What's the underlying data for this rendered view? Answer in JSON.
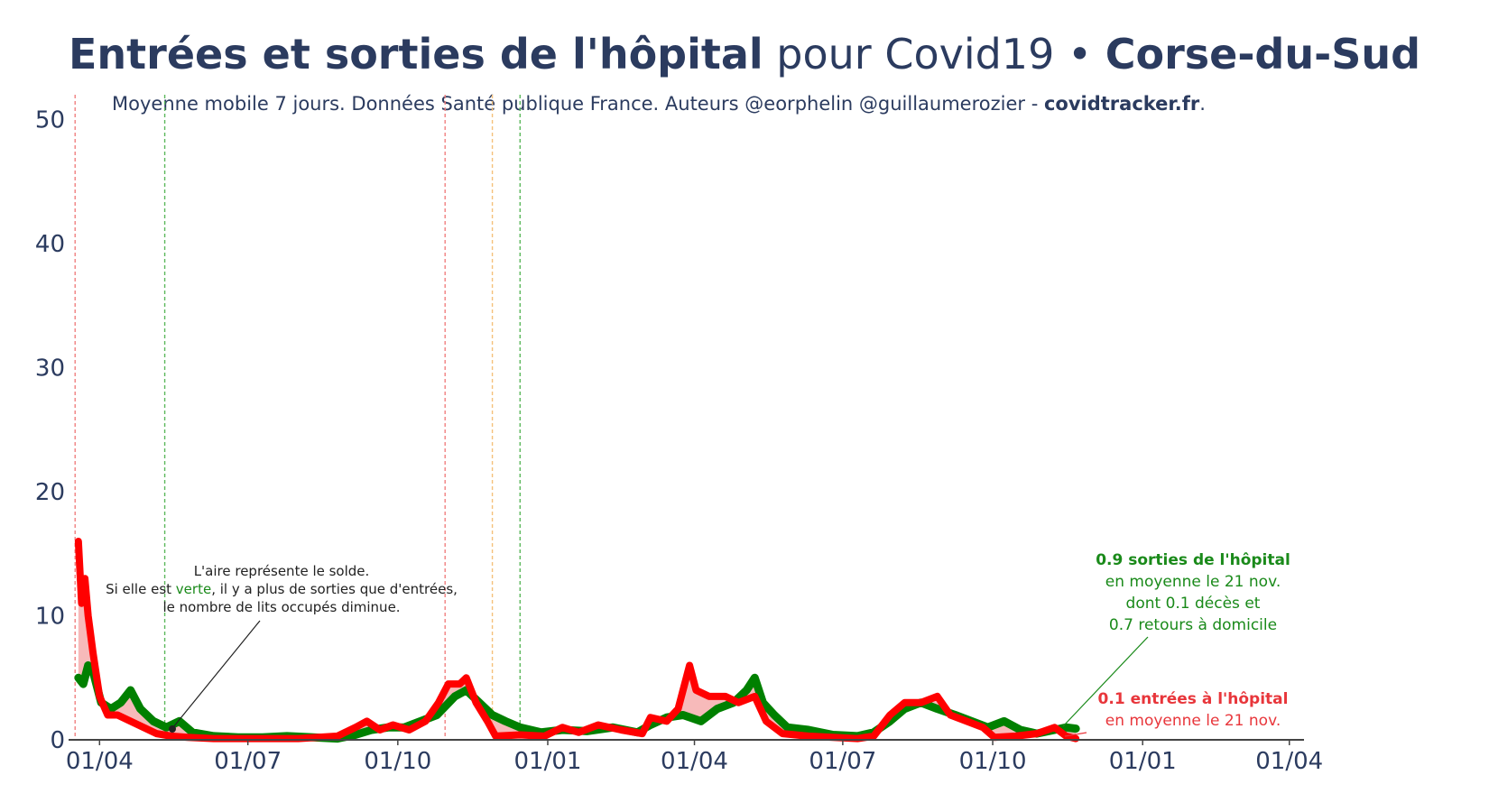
{
  "header": {
    "title_bold": "Entrées et sorties de l'hôpital",
    "title_mid": " pour Covid19 • ",
    "title_region": "Corse-du-Sud",
    "subtitle_pre": "Moyenne mobile 7 jours. Données Santé publique France. Auteurs @eorphelin @guillaumerozier - ",
    "subtitle_site": "covidtracker.fr",
    "subtitle_end": "."
  },
  "annotations": {
    "solde_line1": "L'aire représente le solde.",
    "solde_line2_pre": "Si elle est ",
    "solde_line2_green": "verte",
    "solde_line2_post": ", il y a plus de sorties que d'entrées,",
    "solde_line3": "le nombre de lits occupés diminue.",
    "sorties_line1": "0.9 sorties de l'hôpital",
    "sorties_line2": "en moyenne le 21 nov.",
    "sorties_line3": "dont 0.1 décès et",
    "sorties_line4": "0.7 retours à domicile",
    "entrees_line1": "0.1 entrées à l'hôpital",
    "entrees_line2": "en moyenne le 21 nov."
  },
  "colors": {
    "sorties": "#008000",
    "entrees": "#ff0000",
    "area_fill": "#f4a3a3",
    "text": "#2b3b5f",
    "ann_green": "#1a8a1a",
    "ann_red": "#e8363b"
  },
  "chart_data": {
    "type": "line",
    "title": "Entrées et sorties de l'hôpital pour Covid19 • Corse-du-Sud",
    "xlabel": "",
    "ylabel": "",
    "ylim": [
      0,
      52
    ],
    "xlim": [
      "2020-03-13",
      "2022-04-10"
    ],
    "yticks": [
      0,
      10,
      20,
      30,
      40,
      50
    ],
    "xticks": [
      {
        "date": "2020-04-01",
        "label": "01/04"
      },
      {
        "date": "2020-07-01",
        "label": "01/07"
      },
      {
        "date": "2020-10-01",
        "label": "01/10"
      },
      {
        "date": "2021-01-01",
        "label": "01/01"
      },
      {
        "date": "2021-04-01",
        "label": "01/04"
      },
      {
        "date": "2021-07-01",
        "label": "01/07"
      },
      {
        "date": "2021-10-01",
        "label": "01/10"
      },
      {
        "date": "2022-01-01",
        "label": "01/01"
      },
      {
        "date": "2022-04-01",
        "label": "01/04"
      }
    ],
    "vlines": [
      {
        "date": "2020-03-17",
        "color": "#f08080"
      },
      {
        "date": "2020-05-11",
        "color": "#5cb85c"
      },
      {
        "date": "2020-10-30",
        "color": "#f08080"
      },
      {
        "date": "2020-11-28",
        "color": "#f5c07a"
      },
      {
        "date": "2020-12-15",
        "color": "#5cb85c"
      }
    ],
    "grid": false,
    "series": [
      {
        "name": "sorties",
        "values": [
          [
            "2020-03-19",
            5.0
          ],
          [
            "2020-03-22",
            4.5
          ],
          [
            "2020-03-25",
            6.0
          ],
          [
            "2020-03-28",
            5.5
          ],
          [
            "2020-04-02",
            3.0
          ],
          [
            "2020-04-08",
            2.5
          ],
          [
            "2020-04-14",
            3.0
          ],
          [
            "2020-04-20",
            4.0
          ],
          [
            "2020-04-26",
            2.5
          ],
          [
            "2020-05-04",
            1.5
          ],
          [
            "2020-05-12",
            1.0
          ],
          [
            "2020-05-20",
            1.5
          ],
          [
            "2020-05-28",
            0.6
          ],
          [
            "2020-06-10",
            0.3
          ],
          [
            "2020-06-25",
            0.2
          ],
          [
            "2020-07-10",
            0.2
          ],
          [
            "2020-07-25",
            0.3
          ],
          [
            "2020-08-10",
            0.2
          ],
          [
            "2020-08-25",
            0.1
          ],
          [
            "2020-09-05",
            0.4
          ],
          [
            "2020-09-15",
            0.8
          ],
          [
            "2020-09-25",
            1.0
          ],
          [
            "2020-10-05",
            1.0
          ],
          [
            "2020-10-15",
            1.5
          ],
          [
            "2020-10-25",
            2.0
          ],
          [
            "2020-11-05",
            3.5
          ],
          [
            "2020-11-12",
            4.0
          ],
          [
            "2020-11-20",
            3.0
          ],
          [
            "2020-11-28",
            2.0
          ],
          [
            "2020-12-06",
            1.5
          ],
          [
            "2020-12-15",
            1.0
          ],
          [
            "2020-12-28",
            0.6
          ],
          [
            "2021-01-10",
            0.8
          ],
          [
            "2021-01-25",
            0.7
          ],
          [
            "2021-02-10",
            1.0
          ],
          [
            "2021-02-25",
            0.6
          ],
          [
            "2021-03-05",
            1.2
          ],
          [
            "2021-03-15",
            1.8
          ],
          [
            "2021-03-25",
            2.0
          ],
          [
            "2021-04-05",
            1.5
          ],
          [
            "2021-04-15",
            2.5
          ],
          [
            "2021-04-25",
            3.0
          ],
          [
            "2021-05-03",
            4.0
          ],
          [
            "2021-05-08",
            5.0
          ],
          [
            "2021-05-13",
            3.0
          ],
          [
            "2021-05-20",
            2.0
          ],
          [
            "2021-05-28",
            1.0
          ],
          [
            "2021-06-10",
            0.8
          ],
          [
            "2021-06-25",
            0.4
          ],
          [
            "2021-07-10",
            0.3
          ],
          [
            "2021-07-20",
            0.6
          ],
          [
            "2021-07-30",
            1.5
          ],
          [
            "2021-08-08",
            2.5
          ],
          [
            "2021-08-18",
            3.0
          ],
          [
            "2021-08-28",
            2.5
          ],
          [
            "2021-09-08",
            2.0
          ],
          [
            "2021-09-18",
            1.5
          ],
          [
            "2021-09-28",
            1.0
          ],
          [
            "2021-10-08",
            1.5
          ],
          [
            "2021-10-18",
            0.8
          ],
          [
            "2021-10-28",
            0.5
          ],
          [
            "2021-11-08",
            0.8
          ],
          [
            "2021-11-15",
            1.0
          ],
          [
            "2021-11-21",
            0.9
          ]
        ]
      },
      {
        "name": "entrées",
        "values": [
          [
            "2020-03-19",
            16.0
          ],
          [
            "2020-03-21",
            11.0
          ],
          [
            "2020-03-23",
            13.0
          ],
          [
            "2020-03-25",
            10.0
          ],
          [
            "2020-03-28",
            7.0
          ],
          [
            "2020-04-01",
            3.5
          ],
          [
            "2020-04-06",
            2.0
          ],
          [
            "2020-04-12",
            2.0
          ],
          [
            "2020-04-20",
            1.5
          ],
          [
            "2020-04-28",
            1.0
          ],
          [
            "2020-05-06",
            0.5
          ],
          [
            "2020-05-15",
            0.3
          ],
          [
            "2020-05-25",
            0.2
          ],
          [
            "2020-06-10",
            0.1
          ],
          [
            "2020-07-01",
            0.1
          ],
          [
            "2020-08-01",
            0.1
          ],
          [
            "2020-08-25",
            0.3
          ],
          [
            "2020-09-05",
            1.0
          ],
          [
            "2020-09-12",
            1.5
          ],
          [
            "2020-09-20",
            0.8
          ],
          [
            "2020-09-28",
            1.2
          ],
          [
            "2020-10-08",
            0.8
          ],
          [
            "2020-10-18",
            1.5
          ],
          [
            "2020-10-26",
            3.0
          ],
          [
            "2020-11-01",
            4.5
          ],
          [
            "2020-11-08",
            4.5
          ],
          [
            "2020-11-12",
            5.0
          ],
          [
            "2020-11-18",
            3.0
          ],
          [
            "2020-11-25",
            1.5
          ],
          [
            "2020-11-30",
            0.3
          ],
          [
            "2020-12-15",
            0.4
          ],
          [
            "2020-12-30",
            0.3
          ],
          [
            "2021-01-10",
            1.0
          ],
          [
            "2021-01-20",
            0.6
          ],
          [
            "2021-02-01",
            1.2
          ],
          [
            "2021-02-15",
            0.8
          ],
          [
            "2021-02-28",
            0.5
          ],
          [
            "2021-03-05",
            1.8
          ],
          [
            "2021-03-15",
            1.5
          ],
          [
            "2021-03-22",
            2.5
          ],
          [
            "2021-03-29",
            6.0
          ],
          [
            "2021-04-02",
            4.0
          ],
          [
            "2021-04-10",
            3.5
          ],
          [
            "2021-04-20",
            3.5
          ],
          [
            "2021-04-28",
            3.0
          ],
          [
            "2021-05-08",
            3.5
          ],
          [
            "2021-05-15",
            1.5
          ],
          [
            "2021-05-25",
            0.5
          ],
          [
            "2021-06-10",
            0.3
          ],
          [
            "2021-06-25",
            0.2
          ],
          [
            "2021-07-10",
            0.1
          ],
          [
            "2021-07-20",
            0.3
          ],
          [
            "2021-07-30",
            2.0
          ],
          [
            "2021-08-08",
            3.0
          ],
          [
            "2021-08-18",
            3.0
          ],
          [
            "2021-08-28",
            3.5
          ],
          [
            "2021-09-05",
            2.0
          ],
          [
            "2021-09-15",
            1.5
          ],
          [
            "2021-09-25",
            1.0
          ],
          [
            "2021-10-02",
            0.2
          ],
          [
            "2021-10-15",
            0.3
          ],
          [
            "2021-10-28",
            0.5
          ],
          [
            "2021-11-08",
            1.0
          ],
          [
            "2021-11-15",
            0.3
          ],
          [
            "2021-11-21",
            0.1
          ]
        ]
      }
    ]
  }
}
